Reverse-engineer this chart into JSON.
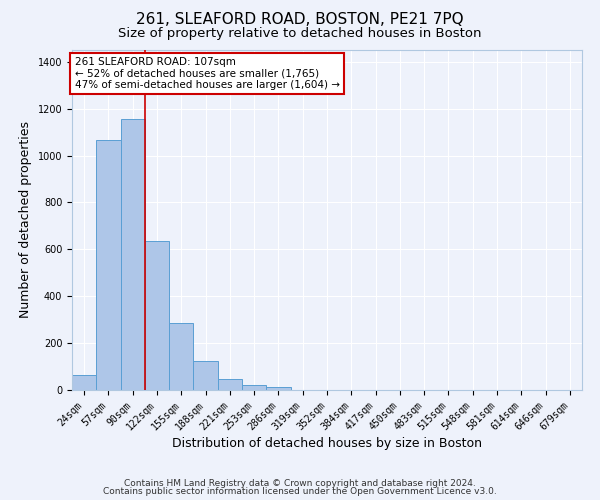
{
  "title": "261, SLEAFORD ROAD, BOSTON, PE21 7PQ",
  "subtitle": "Size of property relative to detached houses in Boston",
  "xlabel": "Distribution of detached houses by size in Boston",
  "ylabel": "Number of detached properties",
  "bin_labels": [
    "24sqm",
    "57sqm",
    "90sqm",
    "122sqm",
    "155sqm",
    "188sqm",
    "221sqm",
    "253sqm",
    "286sqm",
    "319sqm",
    "352sqm",
    "384sqm",
    "417sqm",
    "450sqm",
    "483sqm",
    "515sqm",
    "548sqm",
    "581sqm",
    "614sqm",
    "646sqm",
    "679sqm"
  ],
  "bin_values": [
    65,
    1065,
    1155,
    635,
    285,
    125,
    48,
    20,
    13,
    0,
    0,
    0,
    0,
    0,
    0,
    0,
    0,
    0,
    0,
    0,
    0
  ],
  "bar_color": "#aec6e8",
  "bar_edge_color": "#5a9fd4",
  "vline_pos": 2.515,
  "ylim": [
    0,
    1450
  ],
  "yticks": [
    0,
    200,
    400,
    600,
    800,
    1000,
    1200,
    1400
  ],
  "annotation_title": "261 SLEAFORD ROAD: 107sqm",
  "annotation_line1": "← 52% of detached houses are smaller (1,765)",
  "annotation_line2": "47% of semi-detached houses are larger (1,604) →",
  "annotation_box_color": "#ffffff",
  "annotation_box_edgecolor": "#cc0000",
  "vline_color": "#cc0000",
  "footer1": "Contains HM Land Registry data © Crown copyright and database right 2024.",
  "footer2": "Contains public sector information licensed under the Open Government Licence v3.0.",
  "background_color": "#eef2fb",
  "grid_color": "#ffffff",
  "title_fontsize": 11,
  "subtitle_fontsize": 9.5,
  "axis_label_fontsize": 9,
  "tick_fontsize": 7,
  "annotation_fontsize": 7.5,
  "footer_fontsize": 6.5
}
